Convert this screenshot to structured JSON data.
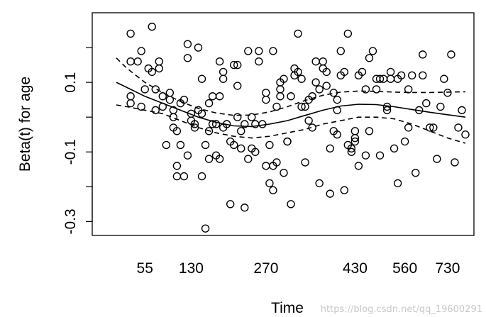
{
  "chart_data": {
    "type": "scatter",
    "title": "",
    "xlabel": "Time",
    "ylabel": "Beta(t) for age",
    "watermark": "https://blog.csdn.net/qq_19600291",
    "x_tick_labels": [
      "55",
      "130",
      "270",
      "430",
      "560",
      "730"
    ],
    "y_tick_values": [
      0.1,
      -0.1,
      -0.3
    ],
    "y_tick_labels": [
      "0.1",
      "-0.1",
      "-0.3"
    ],
    "ylim": [
      -0.34,
      0.3
    ],
    "grid": false,
    "legend": "none",
    "point_color": "#000000",
    "line_color": "#000000",
    "x_axis_note": "x axis spacing follows rank of event time, not linear time",
    "points": [
      [
        0.06,
        0.24
      ],
      [
        0.06,
        0.16
      ],
      [
        0.06,
        0.06
      ],
      [
        0.06,
        0.04
      ],
      [
        0.08,
        0.16
      ],
      [
        0.09,
        0.19
      ],
      [
        0.09,
        0.03
      ],
      [
        0.1,
        0.08
      ],
      [
        0.11,
        0.14
      ],
      [
        0.12,
        0.13
      ],
      [
        0.12,
        0.26
      ],
      [
        0.13,
        0.08
      ],
      [
        0.13,
        0.02
      ],
      [
        0.14,
        0.16
      ],
      [
        0.14,
        0.14
      ],
      [
        0.15,
        0.06
      ],
      [
        0.15,
        0.03
      ],
      [
        0.16,
        -0.08
      ],
      [
        0.17,
        0.07
      ],
      [
        0.17,
        0.05
      ],
      [
        0.18,
        0.02
      ],
      [
        0.18,
        0.0
      ],
      [
        0.18,
        -0.03
      ],
      [
        0.19,
        -0.04
      ],
      [
        0.19,
        -0.14
      ],
      [
        0.19,
        -0.17
      ],
      [
        0.2,
        -0.08
      ],
      [
        0.2,
        0.04
      ],
      [
        0.21,
        0.05
      ],
      [
        0.21,
        -0.17
      ],
      [
        0.22,
        0.17
      ],
      [
        0.22,
        0.21
      ],
      [
        0.22,
        -0.11
      ],
      [
        0.23,
        0.01
      ],
      [
        0.23,
        -0.01
      ],
      [
        0.24,
        -0.02
      ],
      [
        0.24,
        -0.03
      ],
      [
        0.25,
        0.02
      ],
      [
        0.25,
        0.2
      ],
      [
        0.26,
        0.11
      ],
      [
        0.26,
        0.01
      ],
      [
        0.26,
        -0.17
      ],
      [
        0.27,
        -0.08
      ],
      [
        0.27,
        -0.32
      ],
      [
        0.28,
        -0.04
      ],
      [
        0.28,
        0.04
      ],
      [
        0.28,
        -0.12
      ],
      [
        0.29,
        -0.02
      ],
      [
        0.29,
        0.06
      ],
      [
        0.3,
        -0.02
      ],
      [
        0.3,
        -0.11
      ],
      [
        0.31,
        0.16
      ],
      [
        0.31,
        0.06
      ],
      [
        0.31,
        -0.12
      ],
      [
        0.32,
        0.13
      ],
      [
        0.32,
        0.11
      ],
      [
        0.32,
        -0.03
      ],
      [
        0.33,
        -0.02
      ],
      [
        0.34,
        -0.07
      ],
      [
        0.34,
        -0.25
      ],
      [
        0.35,
        0.15
      ],
      [
        0.35,
        -0.08
      ],
      [
        0.36,
        0.15
      ],
      [
        0.36,
        0.09
      ],
      [
        0.36,
        0.0
      ],
      [
        0.37,
        -0.04
      ],
      [
        0.37,
        -0.09
      ],
      [
        0.38,
        -0.26
      ],
      [
        0.38,
        -0.02
      ],
      [
        0.39,
        0.19
      ],
      [
        0.39,
        -0.12
      ],
      [
        0.4,
        0.0
      ],
      [
        0.4,
        -0.09
      ],
      [
        0.41,
        -0.02
      ],
      [
        0.41,
        -0.1
      ],
      [
        0.42,
        0.16
      ],
      [
        0.42,
        0.19
      ],
      [
        0.43,
        -0.02
      ],
      [
        0.44,
        0.05
      ],
      [
        0.44,
        0.07
      ],
      [
        0.44,
        -0.14
      ],
      [
        0.45,
        -0.08
      ],
      [
        0.45,
        -0.19
      ],
      [
        0.46,
        -0.14
      ],
      [
        0.46,
        -0.21
      ],
      [
        0.46,
        0.19
      ],
      [
        0.47,
        0.03
      ],
      [
        0.47,
        -0.13
      ],
      [
        0.48,
        0.08
      ],
      [
        0.48,
        0.06
      ],
      [
        0.48,
        0.1
      ],
      [
        0.49,
        0.11
      ],
      [
        0.49,
        -0.16
      ],
      [
        0.5,
        -0.07
      ],
      [
        0.5,
        -0.07
      ],
      [
        0.51,
        0.06
      ],
      [
        0.51,
        -0.25
      ],
      [
        0.52,
        0.12
      ],
      [
        0.52,
        0.14
      ],
      [
        0.53,
        0.13
      ],
      [
        0.53,
        0.24
      ],
      [
        0.54,
        0.11
      ],
      [
        0.54,
        0.03
      ],
      [
        0.55,
        0.03
      ],
      [
        0.55,
        -0.13
      ],
      [
        0.56,
        0.05
      ],
      [
        0.56,
        -0.01
      ],
      [
        0.57,
        -0.03
      ],
      [
        0.57,
        0.06
      ],
      [
        0.58,
        0.1
      ],
      [
        0.58,
        0.16
      ],
      [
        0.59,
        -0.19
      ],
      [
        0.59,
        0.08
      ],
      [
        0.6,
        0.14
      ],
      [
        0.6,
        0.16
      ],
      [
        0.61,
        0.13
      ],
      [
        0.61,
        0.09
      ],
      [
        0.62,
        -0.22
      ],
      [
        0.62,
        -0.09
      ],
      [
        0.63,
        0.07
      ],
      [
        0.63,
        -0.04
      ],
      [
        0.64,
        0.02
      ],
      [
        0.64,
        0.05
      ],
      [
        0.64,
        -0.05
      ],
      [
        0.65,
        0.19
      ],
      [
        0.65,
        0.12
      ],
      [
        0.66,
        -0.21
      ],
      [
        0.66,
        0.13
      ],
      [
        0.67,
        -0.08
      ],
      [
        0.67,
        0.24
      ],
      [
        0.68,
        -0.09
      ],
      [
        0.68,
        -0.1
      ],
      [
        0.69,
        -0.04
      ],
      [
        0.69,
        -0.06
      ],
      [
        0.69,
        -0.07
      ],
      [
        0.7,
        -0.14
      ],
      [
        0.7,
        0.12
      ],
      [
        0.71,
        0.13
      ],
      [
        0.72,
        -0.11
      ],
      [
        0.72,
        0.08
      ],
      [
        0.73,
        -0.04
      ],
      [
        0.73,
        0.17
      ],
      [
        0.74,
        0.19
      ],
      [
        0.75,
        0.11
      ],
      [
        0.75,
        0.08
      ],
      [
        0.76,
        -0.11
      ],
      [
        0.76,
        0.11
      ],
      [
        0.77,
        0.11
      ],
      [
        0.78,
        0.03
      ],
      [
        0.78,
        0.02
      ],
      [
        0.79,
        0.13
      ],
      [
        0.79,
        0.11
      ],
      [
        0.8,
        -0.09
      ],
      [
        0.81,
        -0.19
      ],
      [
        0.81,
        0.11
      ],
      [
        0.82,
        0.12
      ],
      [
        0.83,
        -0.07
      ],
      [
        0.84,
        0.08
      ],
      [
        0.84,
        -0.03
      ],
      [
        0.85,
        0.12
      ],
      [
        0.86,
        -0.16
      ],
      [
        0.87,
        0.02
      ],
      [
        0.88,
        0.18
      ],
      [
        0.88,
        0.12
      ],
      [
        0.89,
        0.04
      ],
      [
        0.9,
        -0.03
      ],
      [
        0.91,
        -0.03
      ],
      [
        0.92,
        -0.12
      ],
      [
        0.93,
        0.03
      ],
      [
        0.94,
        0.11
      ],
      [
        0.95,
        0.07
      ],
      [
        0.96,
        0.18
      ],
      [
        0.97,
        -0.13
      ],
      [
        0.98,
        -0.03
      ],
      [
        0.99,
        0.02
      ],
      [
        1.0,
        -0.05
      ]
    ],
    "series": [
      {
        "role": "estimate",
        "dash": false,
        "x": [
          0.02,
          0.05,
          0.1,
          0.15,
          0.2,
          0.25,
          0.3,
          0.35,
          0.4,
          0.45,
          0.5,
          0.55,
          0.6,
          0.65,
          0.7,
          0.75,
          0.8,
          0.85,
          0.9,
          0.95,
          1.0
        ],
        "y": [
          0.1,
          0.085,
          0.06,
          0.04,
          0.02,
          0.0,
          -0.015,
          -0.025,
          -0.027,
          -0.02,
          -0.01,
          0.005,
          0.02,
          0.032,
          0.037,
          0.036,
          0.03,
          0.022,
          0.014,
          0.007,
          0.0
        ]
      },
      {
        "role": "upper band",
        "dash": true,
        "x": [
          0.02,
          0.05,
          0.1,
          0.15,
          0.2,
          0.25,
          0.3,
          0.35,
          0.4,
          0.45,
          0.5,
          0.55,
          0.6,
          0.65,
          0.7,
          0.75,
          0.8,
          0.85,
          0.9,
          0.95,
          1.0
        ],
        "y": [
          0.17,
          0.14,
          0.1,
          0.07,
          0.045,
          0.025,
          0.012,
          0.005,
          0.006,
          0.015,
          0.03,
          0.048,
          0.063,
          0.072,
          0.075,
          0.074,
          0.072,
          0.071,
          0.071,
          0.072,
          0.073
        ]
      },
      {
        "role": "lower band",
        "dash": true,
        "x": [
          0.02,
          0.05,
          0.1,
          0.15,
          0.2,
          0.25,
          0.3,
          0.35,
          0.4,
          0.45,
          0.5,
          0.55,
          0.6,
          0.65,
          0.7,
          0.75,
          0.8,
          0.85,
          0.9,
          0.95,
          1.0
        ],
        "y": [
          0.035,
          0.03,
          0.02,
          0.01,
          -0.01,
          -0.03,
          -0.045,
          -0.055,
          -0.06,
          -0.055,
          -0.045,
          -0.035,
          -0.02,
          -0.01,
          0.0,
          0.0,
          -0.005,
          -0.02,
          -0.04,
          -0.06,
          -0.075
        ]
      }
    ]
  }
}
